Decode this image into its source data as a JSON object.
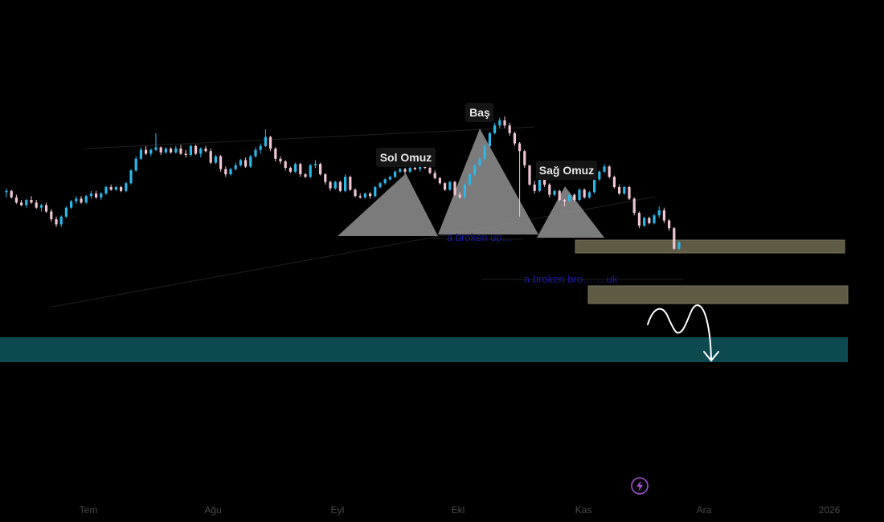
{
  "chart_data": {
    "type": "candlestick",
    "title": "",
    "xlabel": "",
    "ylabel": "",
    "x_ticks": [
      "Tem",
      "Ağu",
      "Eyl",
      "Ekl",
      "Kas",
      "Ara",
      "2026"
    ],
    "grid": false,
    "colors": {
      "up": "#2bb8e8",
      "down": "#f0c6d2",
      "background": "#000000",
      "support_zone": "#0c4a50",
      "resistance_zone": "#5e5a44",
      "pattern_fill": "#9a9a9a"
    },
    "candles": [
      {
        "o": 58.0,
        "h": 59.5,
        "l": 56.0,
        "c": 58.5
      },
      {
        "o": 58.5,
        "h": 59.0,
        "l": 55.5,
        "c": 56.0
      },
      {
        "o": 56.0,
        "h": 57.0,
        "l": 53.5,
        "c": 54.0
      },
      {
        "o": 54.0,
        "h": 55.0,
        "l": 52.5,
        "c": 53.0
      },
      {
        "o": 53.0,
        "h": 55.5,
        "l": 52.0,
        "c": 55.0
      },
      {
        "o": 55.0,
        "h": 56.5,
        "l": 53.5,
        "c": 54.0
      },
      {
        "o": 54.0,
        "h": 55.0,
        "l": 51.5,
        "c": 52.0
      },
      {
        "o": 52.0,
        "h": 53.5,
        "l": 50.5,
        "c": 53.0
      },
      {
        "o": 53.0,
        "h": 54.0,
        "l": 50.0,
        "c": 50.5
      },
      {
        "o": 50.5,
        "h": 51.5,
        "l": 46.5,
        "c": 47.5
      },
      {
        "o": 47.5,
        "h": 48.5,
        "l": 44.5,
        "c": 45.5
      },
      {
        "o": 45.5,
        "h": 49.0,
        "l": 44.5,
        "c": 48.5
      },
      {
        "o": 48.5,
        "h": 52.5,
        "l": 48.0,
        "c": 52.0
      },
      {
        "o": 52.0,
        "h": 55.0,
        "l": 51.5,
        "c": 54.5
      },
      {
        "o": 54.5,
        "h": 56.5,
        "l": 53.5,
        "c": 55.5
      },
      {
        "o": 55.5,
        "h": 56.5,
        "l": 53.5,
        "c": 54.0
      },
      {
        "o": 54.0,
        "h": 57.0,
        "l": 53.5,
        "c": 56.5
      },
      {
        "o": 56.5,
        "h": 58.5,
        "l": 55.5,
        "c": 57.5
      },
      {
        "o": 57.5,
        "h": 58.5,
        "l": 55.5,
        "c": 56.0
      },
      {
        "o": 56.0,
        "h": 58.0,
        "l": 55.0,
        "c": 57.5
      },
      {
        "o": 57.5,
        "h": 60.5,
        "l": 57.0,
        "c": 60.0
      },
      {
        "o": 60.0,
        "h": 61.0,
        "l": 58.5,
        "c": 59.0
      },
      {
        "o": 59.0,
        "h": 60.5,
        "l": 58.5,
        "c": 60.0
      },
      {
        "o": 60.0,
        "h": 60.5,
        "l": 58.0,
        "c": 58.5
      },
      {
        "o": 58.5,
        "h": 62.0,
        "l": 58.0,
        "c": 61.5
      },
      {
        "o": 61.5,
        "h": 67.0,
        "l": 61.0,
        "c": 66.5
      },
      {
        "o": 66.5,
        "h": 72.0,
        "l": 66.0,
        "c": 71.0
      },
      {
        "o": 71.0,
        "h": 75.5,
        "l": 70.5,
        "c": 74.5
      },
      {
        "o": 74.5,
        "h": 76.0,
        "l": 72.5,
        "c": 73.0
      },
      {
        "o": 73.0,
        "h": 75.0,
        "l": 72.0,
        "c": 74.5
      },
      {
        "o": 74.5,
        "h": 81.0,
        "l": 74.0,
        "c": 75.5
      },
      {
        "o": 75.5,
        "h": 75.8,
        "l": 72.5,
        "c": 73.5
      },
      {
        "o": 73.5,
        "h": 75.5,
        "l": 73.0,
        "c": 75.0
      },
      {
        "o": 75.0,
        "h": 75.5,
        "l": 73.0,
        "c": 73.5
      },
      {
        "o": 73.5,
        "h": 76.0,
        "l": 73.0,
        "c": 75.0
      },
      {
        "o": 75.0,
        "h": 76.5,
        "l": 72.5,
        "c": 73.0
      },
      {
        "o": 73.0,
        "h": 74.5,
        "l": 71.5,
        "c": 72.5
      },
      {
        "o": 72.5,
        "h": 76.5,
        "l": 72.0,
        "c": 76.0
      },
      {
        "o": 76.0,
        "h": 76.5,
        "l": 72.5,
        "c": 73.0
      },
      {
        "o": 73.0,
        "h": 75.5,
        "l": 71.5,
        "c": 75.0
      },
      {
        "o": 75.0,
        "h": 76.0,
        "l": 73.5,
        "c": 74.0
      },
      {
        "o": 74.0,
        "h": 75.0,
        "l": 69.0,
        "c": 69.5
      },
      {
        "o": 69.5,
        "h": 72.5,
        "l": 69.0,
        "c": 72.0
      },
      {
        "o": 72.0,
        "h": 72.5,
        "l": 66.0,
        "c": 67.0
      },
      {
        "o": 67.0,
        "h": 68.0,
        "l": 64.0,
        "c": 65.0
      },
      {
        "o": 65.0,
        "h": 67.5,
        "l": 64.5,
        "c": 67.0
      },
      {
        "o": 67.0,
        "h": 69.5,
        "l": 66.5,
        "c": 68.5
      },
      {
        "o": 68.5,
        "h": 71.0,
        "l": 68.0,
        "c": 70.5
      },
      {
        "o": 70.5,
        "h": 71.5,
        "l": 67.5,
        "c": 68.0
      },
      {
        "o": 68.0,
        "h": 72.5,
        "l": 67.5,
        "c": 72.0
      },
      {
        "o": 72.0,
        "h": 75.5,
        "l": 71.5,
        "c": 74.5
      },
      {
        "o": 74.5,
        "h": 77.0,
        "l": 73.0,
        "c": 76.0
      },
      {
        "o": 76.0,
        "h": 82.5,
        "l": 75.5,
        "c": 79.5
      },
      {
        "o": 79.5,
        "h": 80.0,
        "l": 74.0,
        "c": 75.0
      },
      {
        "o": 75.0,
        "h": 75.5,
        "l": 70.0,
        "c": 71.0
      },
      {
        "o": 71.0,
        "h": 72.0,
        "l": 69.0,
        "c": 70.0
      },
      {
        "o": 70.0,
        "h": 70.5,
        "l": 66.5,
        "c": 67.5
      },
      {
        "o": 67.5,
        "h": 68.0,
        "l": 65.5,
        "c": 66.0
      },
      {
        "o": 66.0,
        "h": 69.5,
        "l": 65.5,
        "c": 69.0
      },
      {
        "o": 69.0,
        "h": 69.5,
        "l": 64.0,
        "c": 65.0
      },
      {
        "o": 65.0,
        "h": 65.5,
        "l": 63.5,
        "c": 64.0
      },
      {
        "o": 64.0,
        "h": 69.0,
        "l": 63.5,
        "c": 68.5
      },
      {
        "o": 68.5,
        "h": 70.5,
        "l": 67.5,
        "c": 69.0
      },
      {
        "o": 69.0,
        "h": 69.5,
        "l": 64.5,
        "c": 65.0
      },
      {
        "o": 65.0,
        "h": 65.5,
        "l": 61.0,
        "c": 62.0
      },
      {
        "o": 62.0,
        "h": 62.5,
        "l": 58.5,
        "c": 59.5
      },
      {
        "o": 59.5,
        "h": 62.5,
        "l": 59.0,
        "c": 62.0
      },
      {
        "o": 62.0,
        "h": 62.5,
        "l": 58.0,
        "c": 58.5
      },
      {
        "o": 58.5,
        "h": 65.0,
        "l": 58.0,
        "c": 64.0
      },
      {
        "o": 64.0,
        "h": 64.5,
        "l": 58.5,
        "c": 59.0
      },
      {
        "o": 59.0,
        "h": 59.5,
        "l": 56.0,
        "c": 56.5
      },
      {
        "o": 56.5,
        "h": 57.5,
        "l": 55.5,
        "c": 56.0
      },
      {
        "o": 56.0,
        "h": 58.0,
        "l": 55.5,
        "c": 57.5
      },
      {
        "o": 57.5,
        "h": 58.0,
        "l": 55.5,
        "c": 56.5
      },
      {
        "o": 56.5,
        "h": 60.5,
        "l": 56.0,
        "c": 60.0
      },
      {
        "o": 60.0,
        "h": 62.0,
        "l": 59.5,
        "c": 61.5
      },
      {
        "o": 61.5,
        "h": 63.5,
        "l": 61.0,
        "c": 63.0
      },
      {
        "o": 63.0,
        "h": 64.5,
        "l": 62.5,
        "c": 64.0
      },
      {
        "o": 64.0,
        "h": 66.5,
        "l": 63.5,
        "c": 66.0
      },
      {
        "o": 66.0,
        "h": 67.5,
        "l": 65.5,
        "c": 67.0
      },
      {
        "o": 67.0,
        "h": 67.5,
        "l": 65.0,
        "c": 66.0
      },
      {
        "o": 66.0,
        "h": 68.0,
        "l": 65.5,
        "c": 67.5
      },
      {
        "o": 67.5,
        "h": 69.0,
        "l": 66.5,
        "c": 67.0
      },
      {
        "o": 67.0,
        "h": 68.5,
        "l": 66.0,
        "c": 68.0
      },
      {
        "o": 68.0,
        "h": 69.5,
        "l": 67.0,
        "c": 67.5
      },
      {
        "o": 67.5,
        "h": 68.0,
        "l": 65.0,
        "c": 65.5
      },
      {
        "o": 65.5,
        "h": 66.5,
        "l": 63.0,
        "c": 63.5
      },
      {
        "o": 63.5,
        "h": 64.0,
        "l": 61.0,
        "c": 61.5
      },
      {
        "o": 61.5,
        "h": 62.0,
        "l": 58.5,
        "c": 59.0
      },
      {
        "o": 59.0,
        "h": 62.5,
        "l": 58.5,
        "c": 62.0
      },
      {
        "o": 62.0,
        "h": 62.5,
        "l": 56.5,
        "c": 57.0
      },
      {
        "o": 57.0,
        "h": 58.0,
        "l": 55.5,
        "c": 56.0
      },
      {
        "o": 56.0,
        "h": 61.5,
        "l": 55.5,
        "c": 61.0
      },
      {
        "o": 61.0,
        "h": 65.5,
        "l": 60.5,
        "c": 65.0
      },
      {
        "o": 65.0,
        "h": 69.0,
        "l": 64.5,
        "c": 68.5
      },
      {
        "o": 68.5,
        "h": 71.5,
        "l": 68.0,
        "c": 71.0
      },
      {
        "o": 71.0,
        "h": 76.5,
        "l": 70.5,
        "c": 76.0
      },
      {
        "o": 76.0,
        "h": 81.5,
        "l": 75.5,
        "c": 81.0
      },
      {
        "o": 81.0,
        "h": 85.0,
        "l": 80.5,
        "c": 84.0
      },
      {
        "o": 84.0,
        "h": 87.0,
        "l": 83.0,
        "c": 86.0
      },
      {
        "o": 86.0,
        "h": 87.5,
        "l": 83.0,
        "c": 84.0
      },
      {
        "o": 84.0,
        "h": 85.0,
        "l": 80.0,
        "c": 81.0
      },
      {
        "o": 81.0,
        "h": 81.5,
        "l": 76.0,
        "c": 77.0
      },
      {
        "o": 77.0,
        "h": 77.5,
        "l": 48.5,
        "c": 74.0
      },
      {
        "o": 74.0,
        "h": 74.5,
        "l": 67.5,
        "c": 68.5
      },
      {
        "o": 68.5,
        "h": 68.5,
        "l": 60.5,
        "c": 61.0
      },
      {
        "o": 61.0,
        "h": 62.5,
        "l": 57.5,
        "c": 58.5
      },
      {
        "o": 58.5,
        "h": 66.0,
        "l": 58.0,
        "c": 65.5
      },
      {
        "o": 65.5,
        "h": 66.0,
        "l": 60.0,
        "c": 61.0
      },
      {
        "o": 61.0,
        "h": 61.5,
        "l": 56.0,
        "c": 57.0
      },
      {
        "o": 57.0,
        "h": 59.0,
        "l": 56.5,
        "c": 58.5
      },
      {
        "o": 58.5,
        "h": 59.0,
        "l": 54.5,
        "c": 55.0
      },
      {
        "o": 55.0,
        "h": 55.5,
        "l": 52.5,
        "c": 54.5
      },
      {
        "o": 54.5,
        "h": 57.5,
        "l": 54.0,
        "c": 57.0
      },
      {
        "o": 57.0,
        "h": 57.5,
        "l": 54.5,
        "c": 55.0
      },
      {
        "o": 55.0,
        "h": 59.5,
        "l": 54.5,
        "c": 59.0
      },
      {
        "o": 59.0,
        "h": 59.5,
        "l": 55.5,
        "c": 56.0
      },
      {
        "o": 56.0,
        "h": 58.5,
        "l": 55.5,
        "c": 58.0
      },
      {
        "o": 58.0,
        "h": 63.5,
        "l": 57.5,
        "c": 63.0
      },
      {
        "o": 63.0,
        "h": 66.5,
        "l": 62.5,
        "c": 66.0
      },
      {
        "o": 66.0,
        "h": 69.0,
        "l": 65.5,
        "c": 68.0
      },
      {
        "o": 68.0,
        "h": 68.5,
        "l": 63.5,
        "c": 64.0
      },
      {
        "o": 64.0,
        "h": 64.5,
        "l": 59.5,
        "c": 60.0
      },
      {
        "o": 60.0,
        "h": 61.0,
        "l": 57.0,
        "c": 57.5
      },
      {
        "o": 57.5,
        "h": 60.5,
        "l": 57.0,
        "c": 60.0
      },
      {
        "o": 60.0,
        "h": 60.5,
        "l": 55.0,
        "c": 55.5
      },
      {
        "o": 55.5,
        "h": 56.0,
        "l": 49.0,
        "c": 50.0
      },
      {
        "o": 50.0,
        "h": 50.5,
        "l": 44.0,
        "c": 45.0
      },
      {
        "o": 45.0,
        "h": 48.5,
        "l": 44.5,
        "c": 48.0
      },
      {
        "o": 48.0,
        "h": 48.5,
        "l": 45.5,
        "c": 46.0
      },
      {
        "o": 46.0,
        "h": 49.5,
        "l": 45.5,
        "c": 49.0
      },
      {
        "o": 49.0,
        "h": 52.5,
        "l": 48.0,
        "c": 51.0
      },
      {
        "o": 51.0,
        "h": 52.0,
        "l": 46.0,
        "c": 47.0
      },
      {
        "o": 47.0,
        "h": 47.5,
        "l": 43.0,
        "c": 44.0
      },
      {
        "o": 44.0,
        "h": 44.5,
        "l": 35.5,
        "c": 36.0
      },
      {
        "o": 36.0,
        "h": 39.0,
        "l": 35.5,
        "c": 38.5
      }
    ],
    "annotations": {
      "left_shoulder": "Sol Omuz",
      "head": "Baş",
      "right_shoulder": "Sağ Omuz",
      "broken_line_1": "a broken up…",
      "broken_line_2": "a broken bro… …uk"
    }
  },
  "badge": {
    "icon": "lightning-bolt-icon",
    "color": "#a24fd6"
  }
}
